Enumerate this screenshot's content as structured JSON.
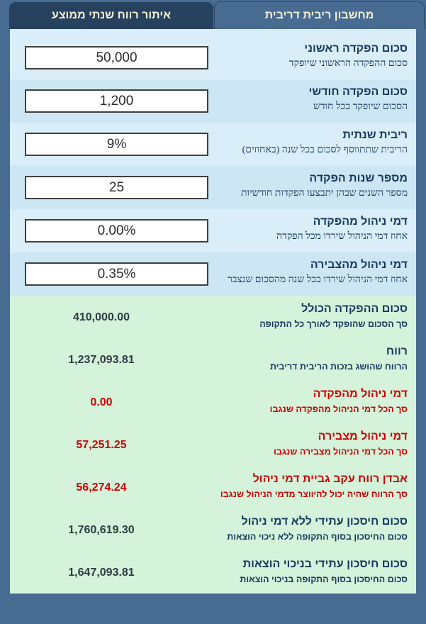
{
  "tabs": {
    "active": "מחשבון ריבית דריבית",
    "inactive": "איתור רווח שנתי ממוצע"
  },
  "inputs": [
    {
      "label": "סכום הפקדה ראשוני",
      "subtitle": "סכום ההפקדה הראשוני שיופקד",
      "value": "50,000"
    },
    {
      "label": "סכום הפקדה חודשי",
      "subtitle": "הסכום שיופקד בכל חודש",
      "value": "1,200"
    },
    {
      "label": "ריבית שנתית",
      "subtitle": "הריבית שתתווסף לסכום בכל שנה (באחוזים)",
      "value": "9%"
    },
    {
      "label": "מספר שנות הפקדה",
      "subtitle": "מספר השנים שבהן יתבצעו הפקדות חודשיות",
      "value": "25"
    },
    {
      "label": "דמי ניהול מהפקדה",
      "subtitle": "אחוז דמי הניהול שירדו מכל הפקדה",
      "value": "0.00%"
    },
    {
      "label": "דמי ניהול מהצבירה",
      "subtitle": "אחוז דמי הניהול שירדו בכל שנה מהסכום שנצבר",
      "value": "0.35%"
    }
  ],
  "results": [
    {
      "label": "סכום ההפקדה הכולל",
      "subtitle": "סך הסכום שהופקד לאורך כל התקופה",
      "value": "410,000.00",
      "tone": "normal"
    },
    {
      "label": "רווח",
      "subtitle": "הרווח שהושג בזכות הריבית דריבית",
      "value": "1,237,093.81",
      "tone": "normal"
    },
    {
      "label": "דמי ניהול מהפקדה",
      "subtitle": "סך הכל דמי הניהול מהפקדה שנגבו",
      "value": "0.00",
      "tone": "negative"
    },
    {
      "label": "דמי ניהול מצבירה",
      "subtitle": "סך הכל דמי הניהול מצבירה שנגבו",
      "value": "57,251.25",
      "tone": "negative"
    },
    {
      "label": "אבדן רווח עקב גביית דמי ניהול",
      "subtitle": "סך הרווח שהיה יכול להיווצר מדמי הניהול שנגבו",
      "value": "56,274.24",
      "tone": "negative"
    },
    {
      "label": "סכום חיסכון עתידי ללא דמי ניהול",
      "subtitle": "סכום החיסכון בסוף התקופה ללא ניכוי הוצאות",
      "value": "1,760,619.30",
      "tone": "normal"
    },
    {
      "label": "סכום חיסכון עתידי בניכוי הוצאות",
      "subtitle": "סכום החיסכון בסוף התקופה בניכוי הוצאות",
      "value": "1,647,093.81",
      "tone": "normal"
    }
  ],
  "colors": {
    "page_background": "#486b92",
    "tab_inactive_background": "#27425f",
    "tab_text": "#f6f1d3",
    "input_row_light": "#d9eef8",
    "input_row_dark": "#cce7f3",
    "results_background": "#d4f3da",
    "label_navy": "#17375e",
    "negative_red": "#cc0000",
    "input_border": "#3f3f3f"
  }
}
